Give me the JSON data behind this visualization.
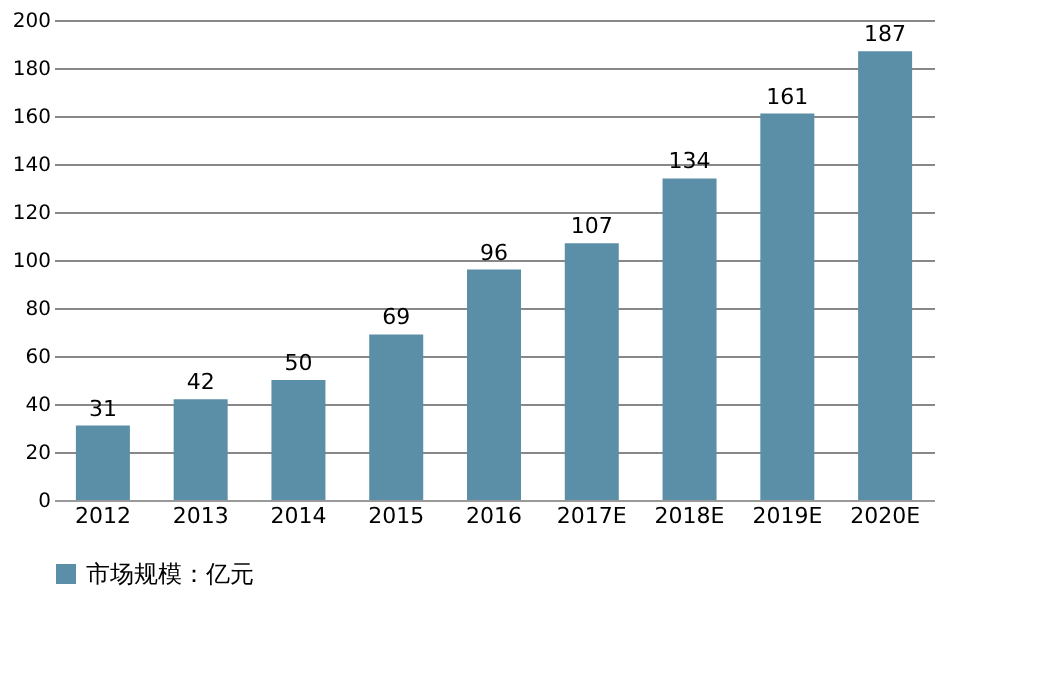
{
  "chart_data": {
    "type": "bar",
    "categories": [
      "2012",
      "2013",
      "2014",
      "2015",
      "2016",
      "2017E",
      "2018E",
      "2019E",
      "2020E"
    ],
    "series": [
      {
        "name": "市场规模：亿元",
        "color": "#5b8fa8",
        "values": [
          31,
          42,
          50,
          69,
          96,
          107,
          134,
          161,
          187
        ]
      }
    ],
    "ylim": [
      0,
      200
    ],
    "yticks": [
      0,
      20,
      40,
      60,
      80,
      100,
      120,
      140,
      160,
      180,
      200
    ],
    "grid": "y",
    "legend": "bottom",
    "data_labels": true
  }
}
